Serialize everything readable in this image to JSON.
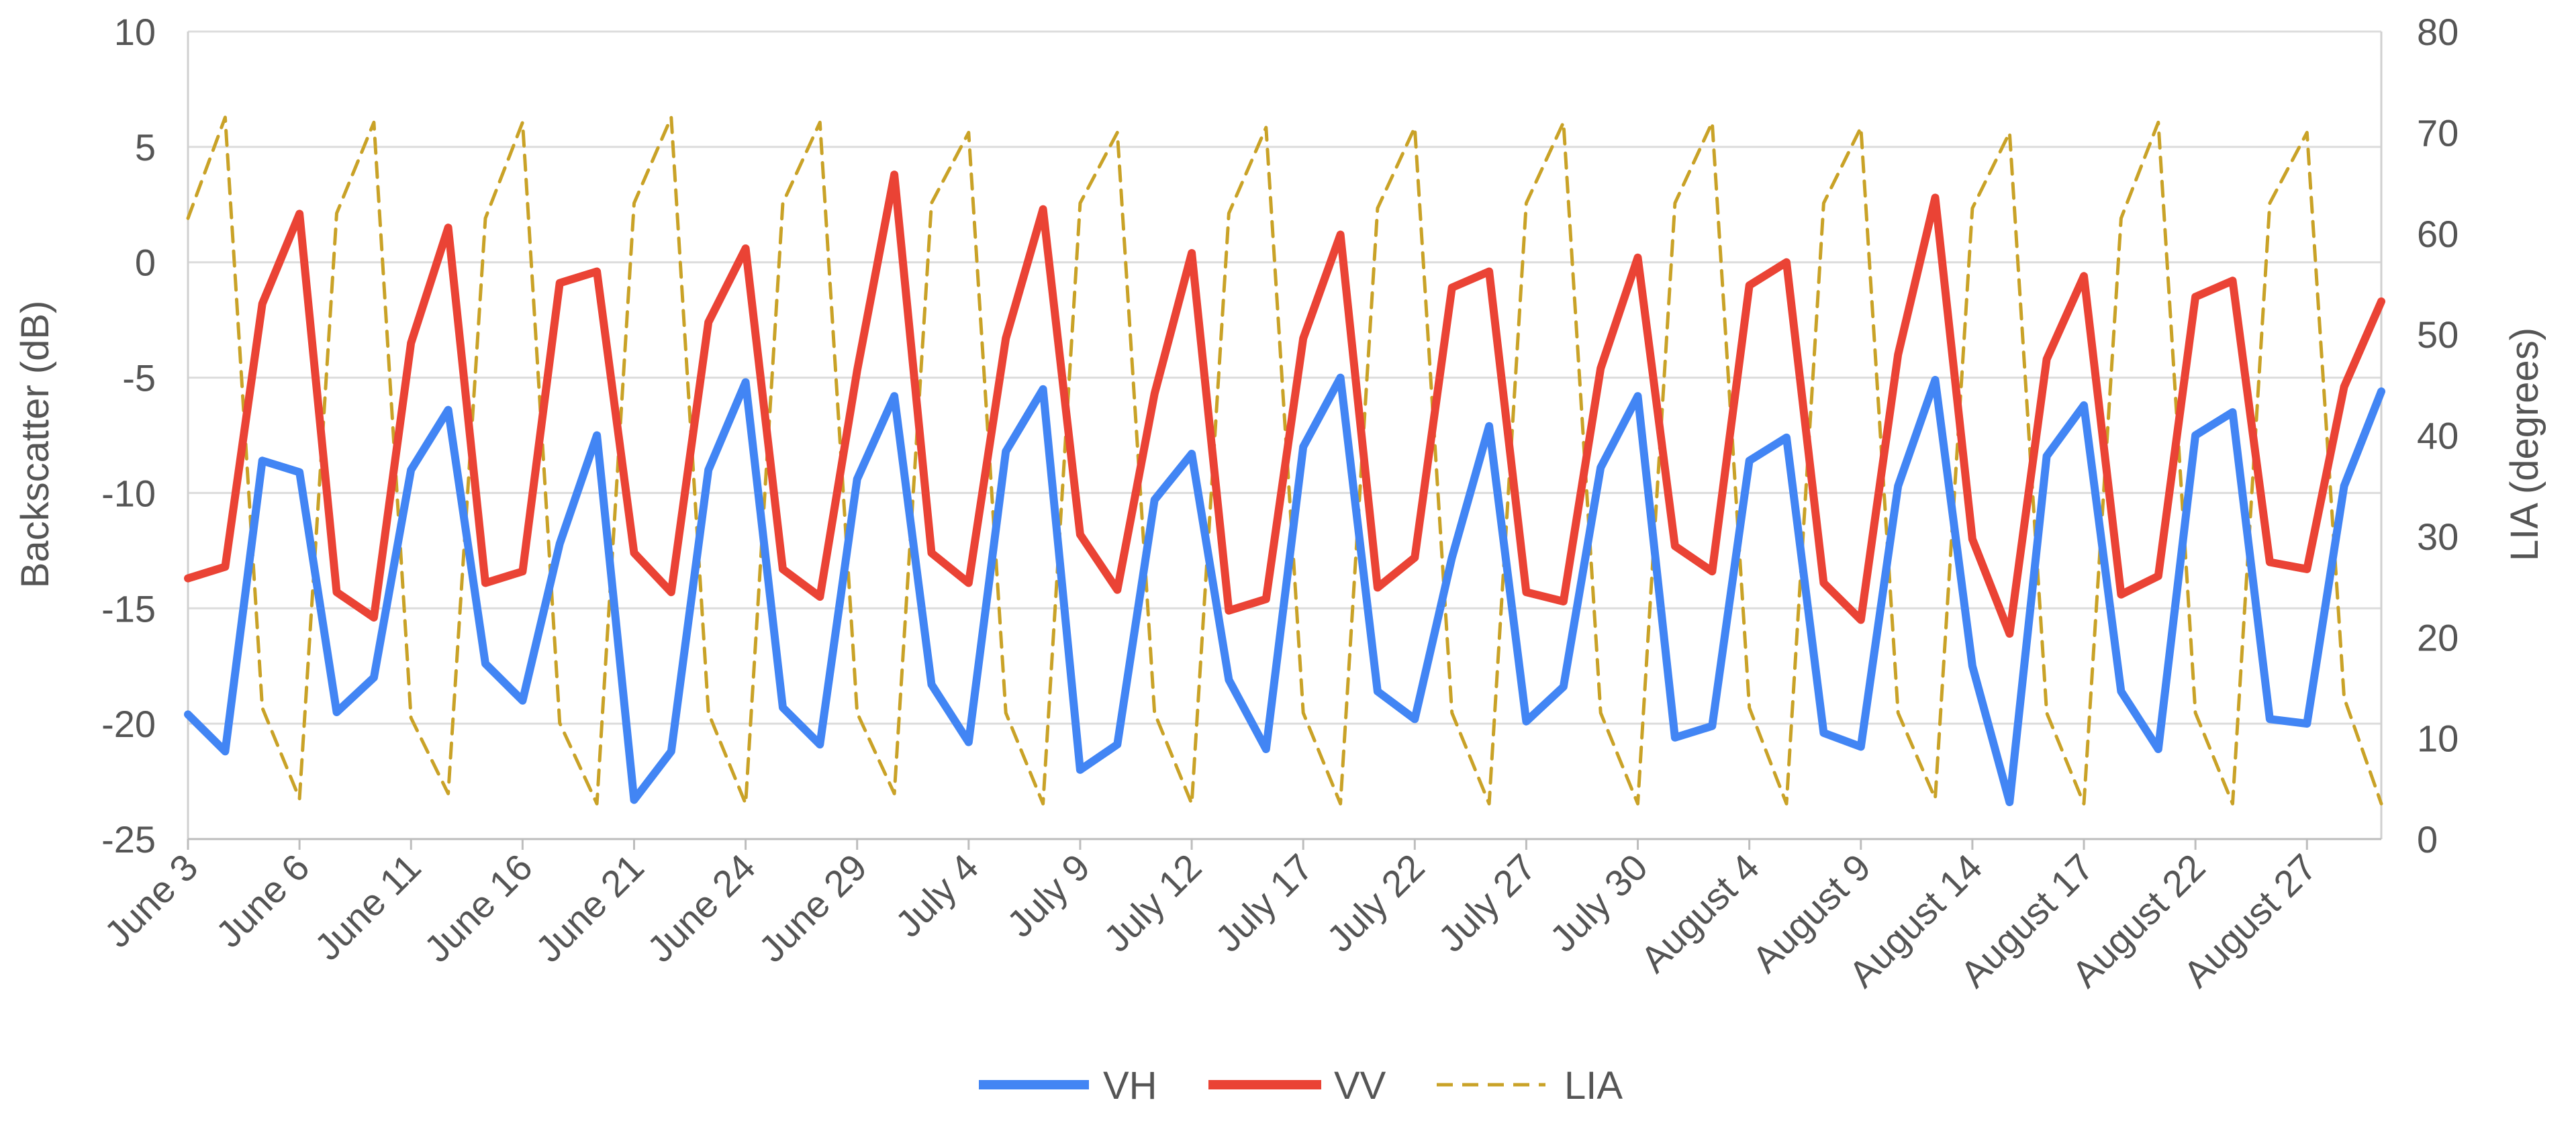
{
  "chart_data": {
    "type": "line",
    "title": "",
    "xlabel": "",
    "ylabel": "Backscatter (dB)",
    "y2label": "LIA (degrees)",
    "ylim": [
      -25,
      10
    ],
    "yticks": [
      -25,
      -20,
      -15,
      -10,
      -5,
      0,
      5,
      10
    ],
    "y2lim": [
      0,
      80
    ],
    "y2ticks": [
      0,
      10,
      20,
      30,
      40,
      50,
      60,
      70,
      80
    ],
    "grid": true,
    "legend_position": "bottom-center",
    "x_tick_labels": [
      "June 3",
      "June 6",
      "June 11",
      "June 16",
      "June 21",
      "June 24",
      "June 29",
      "July 4",
      "July 9",
      "July 12",
      "July 17",
      "July 22",
      "July 27",
      "July 30",
      "August 4",
      "August 9",
      "August 14",
      "August 17",
      "August 22",
      "August 27"
    ],
    "x_tick_step": 3,
    "series": [
      {
        "name": "VH",
        "axis": "left",
        "color": "#4285F4",
        "style": "solid",
        "values": [
          -19.6,
          -21.2,
          -8.6,
          -9.1,
          -19.5,
          -18,
          -9,
          -6.4,
          -17.4,
          -19,
          -12.2,
          -7.5,
          -23.3,
          -21.2,
          -9,
          -5.2,
          -19.3,
          -20.9,
          -9.4,
          -5.8,
          -18.3,
          -20.8,
          -8.2,
          -5.5,
          -22,
          -20.9,
          -10.3,
          -8.3,
          -18.1,
          -21.1,
          -8,
          -5,
          -18.6,
          -19.8,
          -12.8,
          -7.1,
          -19.9,
          -18.4,
          -8.9,
          -5.8,
          -20.6,
          -20.1,
          -8.6,
          -7.6,
          -20.4,
          -21,
          -9.7,
          -5.1,
          -17.5,
          -23.4,
          -8.4,
          -6.2,
          -18.6,
          -21.1,
          -7.5,
          -6.5,
          -19.8,
          -20,
          -9.7,
          -5.6
        ]
      },
      {
        "name": "VV",
        "axis": "left",
        "color": "#EA4335",
        "style": "solid",
        "values": [
          -13.7,
          -13.2,
          -1.8,
          2.1,
          -14.3,
          -15.4,
          -3.5,
          1.5,
          -13.9,
          -13.4,
          -0.9,
          -0.4,
          -12.6,
          -14.3,
          -2.6,
          0.6,
          -13.3,
          -14.5,
          -4.7,
          3.8,
          -12.6,
          -13.9,
          -3.3,
          2.3,
          -11.8,
          -14.2,
          -5.7,
          0.4,
          -15.1,
          -14.6,
          -3.3,
          1.2,
          -14.1,
          -12.8,
          -1.1,
          -0.4,
          -14.3,
          -14.7,
          -4.6,
          0.2,
          -12.3,
          -13.4,
          -1,
          0,
          -13.9,
          -15.5,
          -4,
          2.8,
          -12,
          -16.1,
          -4.2,
          -0.6,
          -14.4,
          -13.6,
          -1.5,
          -0.8,
          -13,
          -13.3,
          -5.4,
          -1.7
        ]
      },
      {
        "name": "LIA",
        "axis": "right",
        "color": "#C9A227",
        "style": "dashed",
        "values": [
          61.5,
          71.5,
          13,
          4,
          62,
          71,
          12,
          4.5,
          61.5,
          71,
          11.5,
          3.5,
          63,
          71.5,
          12.5,
          3.5,
          63,
          71,
          12.5,
          4.5,
          63,
          70,
          12.5,
          3.5,
          63,
          70,
          12.5,
          3.5,
          62,
          70.5,
          12.5,
          3.5,
          62.5,
          70.5,
          12.5,
          3.5,
          63,
          71,
          12.5,
          3.5,
          63,
          71,
          13,
          3.5,
          63,
          70.5,
          12.5,
          4,
          62.5,
          70,
          12.5,
          3.5,
          61.5,
          71,
          12.5,
          3.5,
          63,
          70,
          14,
          3.5
        ]
      }
    ]
  }
}
